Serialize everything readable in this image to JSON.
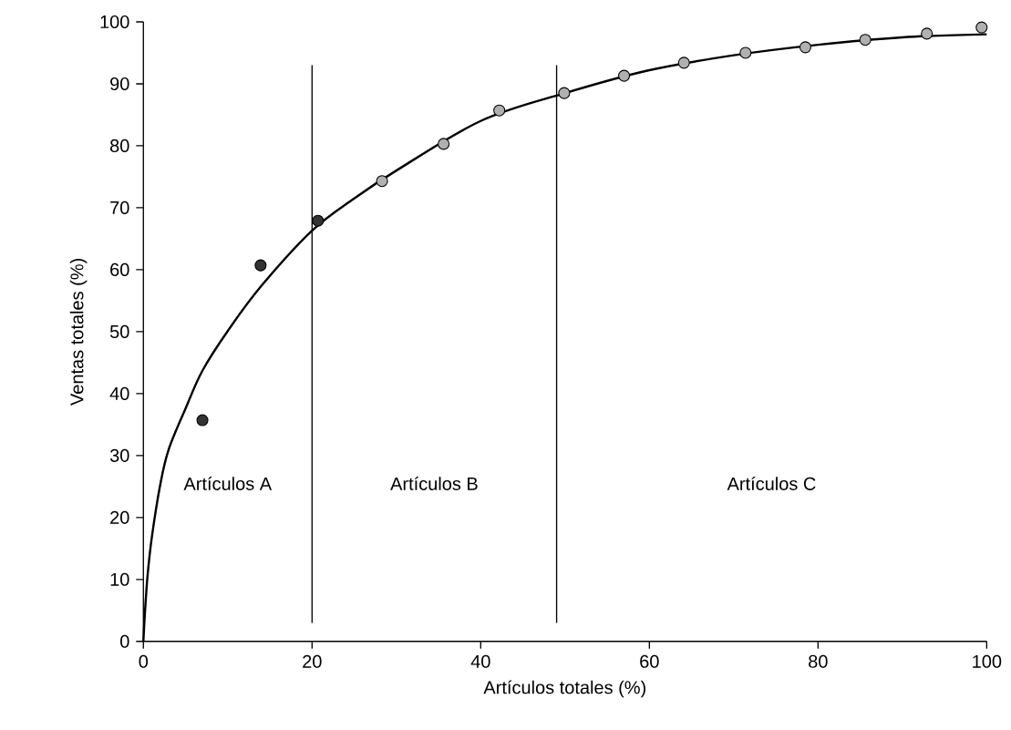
{
  "chart_data": {
    "type": "scatter",
    "xlabel": "Artículos totales (%)",
    "ylabel": "Ventas totales (%)",
    "xlim": [
      0,
      100
    ],
    "ylim": [
      0,
      100
    ],
    "xticks": [
      0,
      20,
      40,
      60,
      80,
      100
    ],
    "yticks": [
      0,
      10,
      20,
      30,
      40,
      50,
      60,
      70,
      80,
      90,
      100
    ],
    "grid": false,
    "marker": "circle",
    "series": [
      {
        "color": "#333333",
        "x": [
          7.0,
          13.9,
          20.7
        ],
        "values": [
          35.7,
          60.7,
          67.9
        ]
      },
      {
        "color": "#b0b0b0",
        "x": [
          28.3,
          35.6,
          42.2,
          49.9,
          57.0,
          64.1,
          71.4,
          78.5,
          85.6,
          92.9,
          99.4
        ],
        "values": [
          74.3,
          80.3,
          85.7,
          88.5,
          91.3,
          93.4,
          95.0,
          95.9,
          97.1,
          98.1,
          99.1
        ]
      },
      {
        "type": "line",
        "color": "#000000",
        "marker": "none",
        "x": [
          0,
          0.2,
          0.5,
          1,
          2,
          3,
          5,
          7,
          10,
          14,
          20,
          25,
          30,
          40,
          50,
          60,
          70,
          80,
          90,
          100
        ],
        "values": [
          0,
          5,
          10.7,
          16.8,
          25.3,
          31,
          37.6,
          43.7,
          50.1,
          57.4,
          66.3,
          71.5,
          76,
          84,
          88.5,
          92.2,
          94.6,
          96.3,
          97.5,
          98.0
        ]
      }
    ],
    "ref_lines": [
      {
        "axis": "x",
        "value": 20,
        "color": "#000000"
      },
      {
        "axis": "x",
        "value": 49,
        "color": "#000000"
      }
    ],
    "annotations": [
      "Artículos A",
      "Artículos B",
      "Artículos C"
    ]
  }
}
